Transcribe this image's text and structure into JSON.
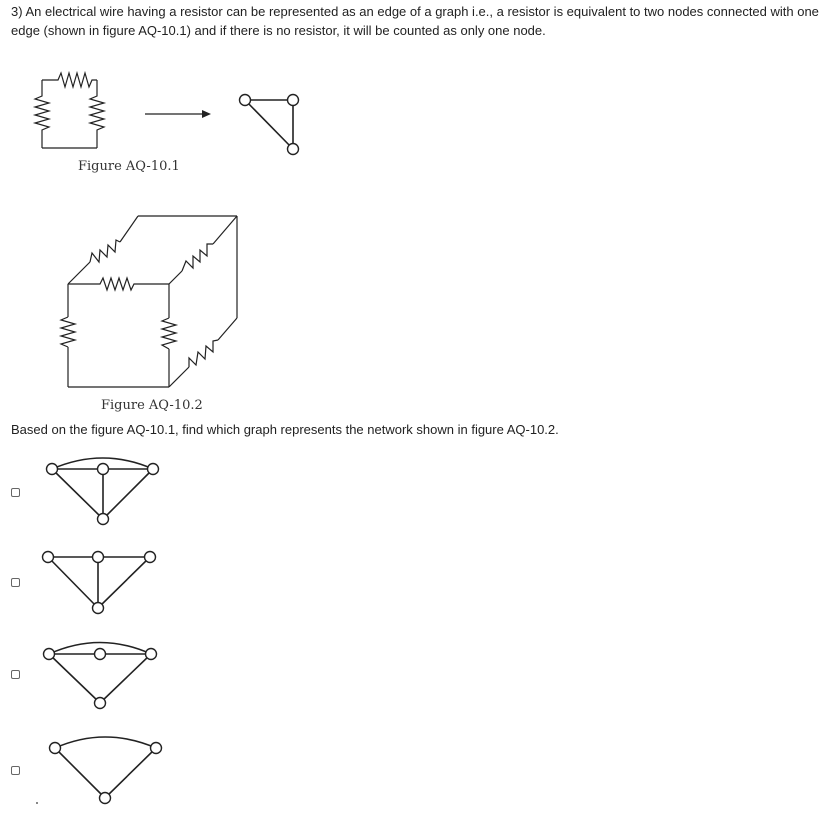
{
  "question": {
    "text": "3) An electrical wire having a resistor can be represented as an edge of a graph i.e., a resistor is equivalent to two nodes connected with one edge (shown in figure AQ-10.1) and if there is no resistor, it will be counted as only one node."
  },
  "figure1": {
    "caption": "Figure AQ-10.1"
  },
  "figure2": {
    "caption": "Figure AQ-10.2"
  },
  "prompt": {
    "text": "Based on the figure AQ-10.1, find which graph represents the network shown in figure AQ-10.2."
  },
  "options": [
    {
      "id": "a",
      "checked": false
    },
    {
      "id": "b",
      "checked": false
    },
    {
      "id": "c",
      "checked": false
    },
    {
      "id": "d",
      "checked": false
    }
  ],
  "colors": {
    "text": "#222222",
    "checkbox_border": "#666666"
  }
}
